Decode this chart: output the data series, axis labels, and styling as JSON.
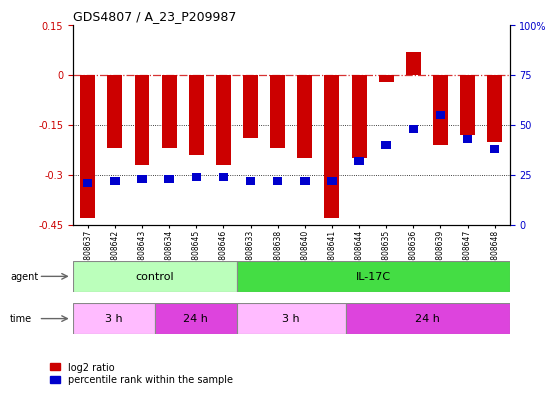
{
  "title": "GDS4807 / A_23_P209987",
  "samples": [
    "GSM808637",
    "GSM808642",
    "GSM808643",
    "GSM808634",
    "GSM808645",
    "GSM808646",
    "GSM808633",
    "GSM808638",
    "GSM808640",
    "GSM808641",
    "GSM808644",
    "GSM808635",
    "GSM808636",
    "GSM808639",
    "GSM808647",
    "GSM808648"
  ],
  "log2_ratios": [
    -0.43,
    -0.22,
    -0.27,
    -0.22,
    -0.24,
    -0.27,
    -0.19,
    -0.22,
    -0.25,
    -0.43,
    -0.25,
    -0.02,
    0.07,
    -0.21,
    -0.18,
    -0.2
  ],
  "percentile_ranks": [
    21,
    22,
    23,
    23,
    24,
    24,
    22,
    22,
    22,
    22,
    32,
    40,
    48,
    55,
    43,
    38
  ],
  "ylim_left": [
    -0.45,
    0.15
  ],
  "ylim_right": [
    0,
    100
  ],
  "yticks_left": [
    -0.45,
    -0.3,
    -0.15,
    0.0,
    0.15
  ],
  "yticks_right": [
    0,
    25,
    50,
    75,
    100
  ],
  "bar_color": "#cc0000",
  "dot_color": "#0000cc",
  "zero_line_color": "#cc0000",
  "grid_line_color": "#000000",
  "bg_color": "#ffffff",
  "agent_control_color": "#bbffbb",
  "agent_il17c_color": "#44dd44",
  "time_3h_color": "#ffbbff",
  "time_24h_color": "#dd44dd",
  "control_count": 6,
  "il17c_count": 10,
  "ctrl_3h": 3,
  "ctrl_24h": 3,
  "il17c_3h": 4,
  "il17c_24h": 6
}
